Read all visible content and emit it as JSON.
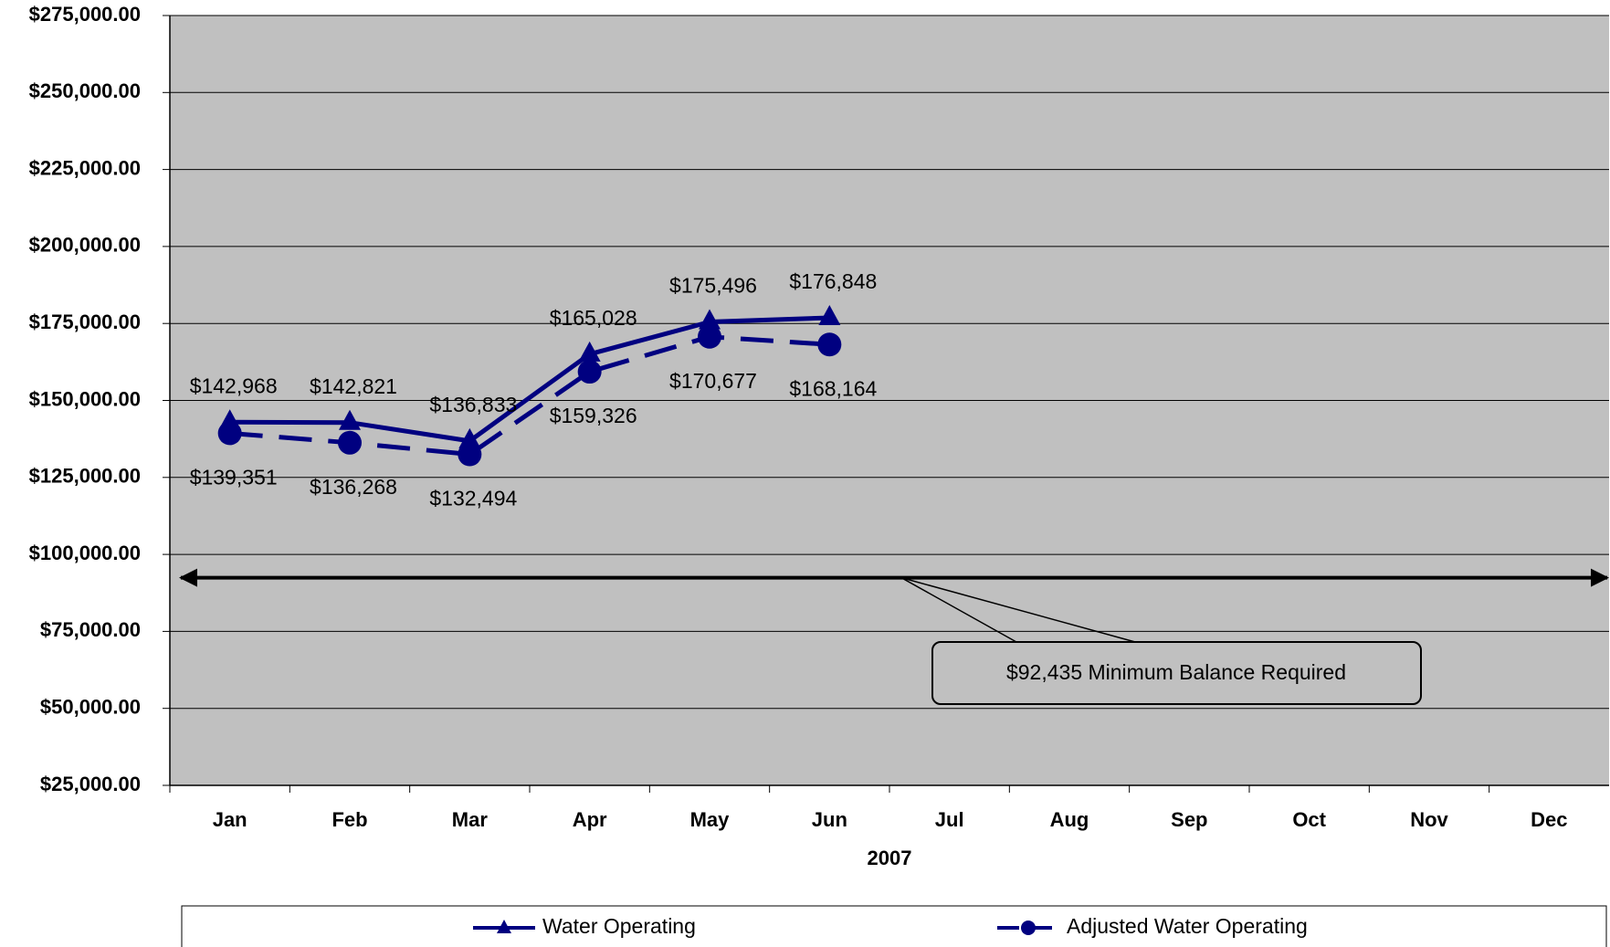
{
  "chart_data": {
    "type": "line",
    "xlabel": "2007",
    "categories": [
      "Jan",
      "Feb",
      "Mar",
      "Apr",
      "May",
      "Jun",
      "Jul",
      "Aug",
      "Sep",
      "Oct",
      "Nov",
      "Dec"
    ],
    "series": [
      {
        "name": "Water Operating",
        "color": "#000080",
        "marker": "triangle",
        "dash": false,
        "values": [
          142968,
          142821,
          136833,
          165028,
          175496,
          176848,
          null,
          null,
          null,
          null,
          null,
          null
        ],
        "value_labels": [
          "$142,968",
          "$142,821",
          "$136,833",
          "$165,028",
          "$175,496",
          "$176,848",
          null,
          null,
          null,
          null,
          null,
          null
        ]
      },
      {
        "name": "Adjusted Water Operating",
        "color": "#000080",
        "marker": "circle",
        "dash": true,
        "values": [
          139351,
          136268,
          132494,
          159326,
          170677,
          168164,
          null,
          null,
          null,
          null,
          null,
          null
        ],
        "value_labels": [
          "$139,351",
          "$136,268",
          "$132,494",
          "$159,326",
          "$170,677",
          "$168,164",
          null,
          null,
          null,
          null,
          null,
          null
        ]
      }
    ],
    "threshold": {
      "value": 92435,
      "label": "$92,435 Minimum Balance Required"
    },
    "ylim": [
      25000,
      275000
    ],
    "yticks": [
      {
        "value": 25000,
        "label": "$25,000.00"
      },
      {
        "value": 50000,
        "label": "$50,000.00"
      },
      {
        "value": 75000,
        "label": "$75,000.00"
      },
      {
        "value": 100000,
        "label": "$100,000.00"
      },
      {
        "value": 125000,
        "label": "$125,000.00"
      },
      {
        "value": 150000,
        "label": "$150,000.00"
      },
      {
        "value": 175000,
        "label": "$175,000.00"
      },
      {
        "value": 200000,
        "label": "$200,000.00"
      },
      {
        "value": 225000,
        "label": "$225,000.00"
      },
      {
        "value": 250000,
        "label": "$250,000.00"
      },
      {
        "value": 275000,
        "label": "$275,000.00"
      }
    ],
    "grid": true,
    "legend": "bottom",
    "plot_background": "#c0c0c0"
  }
}
